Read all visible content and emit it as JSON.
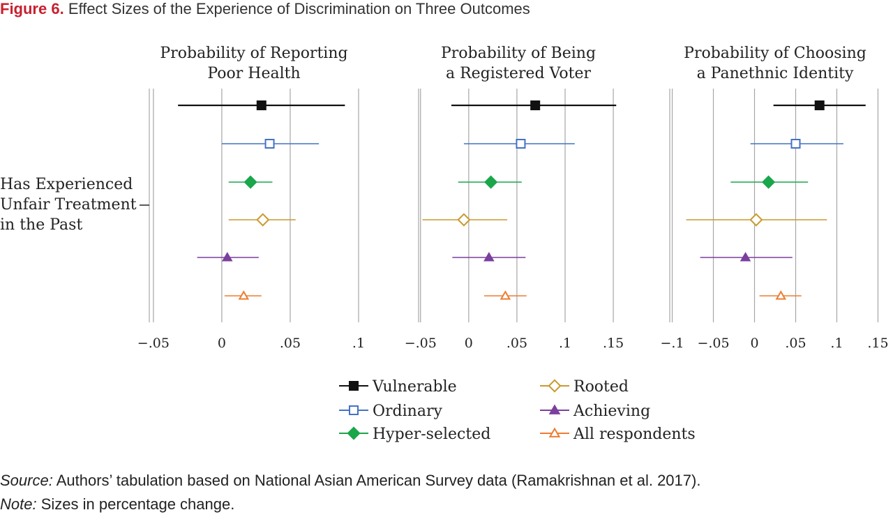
{
  "figure": {
    "label": "Figure 6.",
    "title": "Effect Sizes of the Experience of Discrimination on Three Outcomes"
  },
  "row_label": [
    "Has Experienced",
    "Unfair Treatment",
    "in the Past"
  ],
  "colors": {
    "title_red": "#c8202f",
    "grid": "#a6a6a6",
    "Vulnerable": "#111111",
    "Ordinary": "#4472c4",
    "Hyper-selected": "#1aa64a",
    "Rooted": "#c99a2e",
    "Achieving": "#7b3f9e",
    "All respondents": "#ed7d31"
  },
  "legend": [
    {
      "name": "Vulnerable",
      "marker": "square-filled"
    },
    {
      "name": "Ordinary",
      "marker": "square-open"
    },
    {
      "name": "Hyper-selected",
      "marker": "diamond-filled"
    },
    {
      "name": "Rooted",
      "marker": "diamond-open"
    },
    {
      "name": "Achieving",
      "marker": "triangle-filled"
    },
    {
      "name": "All respondents",
      "marker": "triangle-open"
    }
  ],
  "chart_data": [
    {
      "type": "scatter",
      "title": [
        "Probability of Reporting",
        "Poor Health"
      ],
      "xlim": [
        -0.053,
        0.1
      ],
      "grid_ticks": [
        -0.05,
        0,
        0.05,
        0.1
      ],
      "tick_labels": [
        "−.05",
        "0",
        ".05",
        ".1"
      ],
      "series": [
        {
          "name": "Vulnerable",
          "estimate": 0.029,
          "ci": [
            -0.032,
            0.09
          ]
        },
        {
          "name": "Ordinary",
          "estimate": 0.035,
          "ci": [
            0.0,
            0.071
          ]
        },
        {
          "name": "Hyper-selected",
          "estimate": 0.021,
          "ci": [
            0.005,
            0.037
          ]
        },
        {
          "name": "Rooted",
          "estimate": 0.03,
          "ci": [
            0.005,
            0.054
          ]
        },
        {
          "name": "Achieving",
          "estimate": 0.004,
          "ci": [
            -0.018,
            0.027
          ]
        },
        {
          "name": "All respondents",
          "estimate": 0.016,
          "ci": [
            0.002,
            0.029
          ]
        }
      ]
    },
    {
      "type": "scatter",
      "title": [
        "Probability of Being",
        "a Registered Voter"
      ],
      "xlim": [
        -0.052,
        0.155
      ],
      "grid_ticks": [
        -0.05,
        0,
        0.05,
        0.1,
        0.15
      ],
      "tick_labels": [
        "−.05",
        "0",
        ".05",
        ".1",
        ".15"
      ],
      "series": [
        {
          "name": "Vulnerable",
          "estimate": 0.069,
          "ci": [
            -0.018,
            0.153
          ]
        },
        {
          "name": "Ordinary",
          "estimate": 0.054,
          "ci": [
            -0.005,
            0.11
          ]
        },
        {
          "name": "Hyper-selected",
          "estimate": 0.023,
          "ci": [
            -0.011,
            0.055
          ]
        },
        {
          "name": "Rooted",
          "estimate": -0.005,
          "ci": [
            -0.048,
            0.04
          ]
        },
        {
          "name": "Achieving",
          "estimate": 0.021,
          "ci": [
            -0.017,
            0.059
          ]
        },
        {
          "name": "All respondents",
          "estimate": 0.038,
          "ci": [
            0.016,
            0.06
          ]
        }
      ]
    },
    {
      "type": "scatter",
      "title": [
        "Probability of Choosing",
        "a Panethnic Identity"
      ],
      "xlim": [
        -0.103,
        0.153
      ],
      "grid_ticks": [
        -0.1,
        -0.05,
        0,
        0.05,
        0.1,
        0.15
      ],
      "tick_labels": [
        "−.1",
        "−.05",
        "0",
        ".05",
        ".1",
        ".15"
      ],
      "series": [
        {
          "name": "Vulnerable",
          "estimate": 0.079,
          "ci": [
            0.023,
            0.135
          ]
        },
        {
          "name": "Ordinary",
          "estimate": 0.05,
          "ci": [
            -0.005,
            0.108
          ]
        },
        {
          "name": "Hyper-selected",
          "estimate": 0.017,
          "ci": [
            -0.029,
            0.065
          ]
        },
        {
          "name": "Rooted",
          "estimate": 0.002,
          "ci": [
            -0.083,
            0.088
          ]
        },
        {
          "name": "Achieving",
          "estimate": -0.011,
          "ci": [
            -0.066,
            0.046
          ]
        },
        {
          "name": "All respondents",
          "estimate": 0.032,
          "ci": [
            0.006,
            0.057
          ]
        }
      ]
    }
  ],
  "notes": {
    "source_label": "Source:",
    "source_text": "Authors’ tabulation based on National Asian American Survey data (Ramakrishnan et al. 2017).",
    "note_label": "Note:",
    "note_text": "Sizes in percentage change."
  }
}
